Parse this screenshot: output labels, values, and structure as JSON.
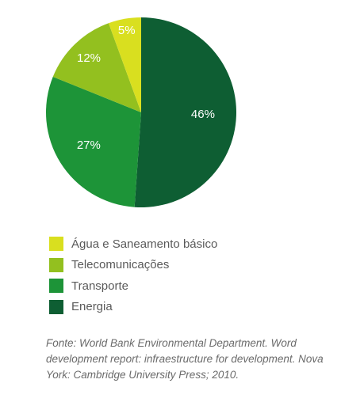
{
  "chart_data": {
    "type": "pie",
    "title": "",
    "slices": [
      {
        "label": "Energia",
        "value": 46,
        "display": "46%",
        "color": "#0e5e33"
      },
      {
        "label": "Transporte",
        "value": 27,
        "display": "27%",
        "color": "#1d9438"
      },
      {
        "label": "Telecomunicações",
        "value": 12,
        "display": "12%",
        "color": "#93c01f"
      },
      {
        "label": "Água e Saneamento básico",
        "value": 5,
        "display": "5%",
        "color": "#d9df1f"
      }
    ],
    "legend": {
      "placement": "bottom",
      "entries": [
        {
          "label": "Água e Saneamento básico",
          "color": "#d9df1f"
        },
        {
          "label": "Telecomunicações",
          "color": "#93c01f"
        },
        {
          "label": "Transporte",
          "color": "#1d9438"
        },
        {
          "label": "Energia",
          "color": "#0e5e33"
        }
      ]
    }
  },
  "source": "Fonte: World Bank Environmental Department. Word development report: infraestructure for development. Nova York: Cambridge University Press; 2010."
}
